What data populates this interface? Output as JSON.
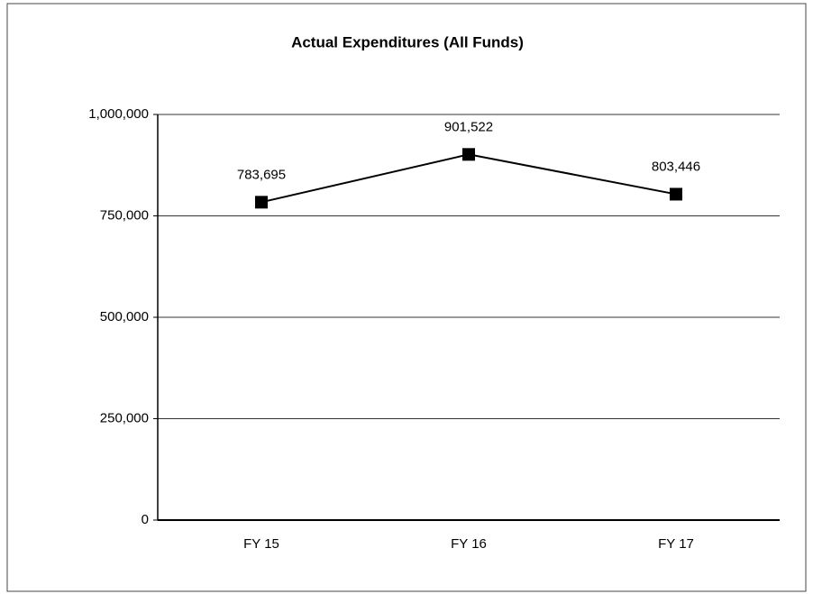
{
  "chart_data": {
    "type": "line",
    "title": "Actual Expenditures (All Funds)",
    "categories": [
      "FY 15",
      "FY 16",
      "FY 17"
    ],
    "series": [
      {
        "name": "Actual Expenditures",
        "color": "#000000",
        "values": [
          783695,
          901522,
          803446
        ],
        "value_labels": [
          "783,695",
          "901,522",
          "803,446"
        ]
      }
    ],
    "ylim": [
      0,
      1000000
    ],
    "yticks": [
      0,
      {
        "value": 250000,
        "label": "250,000"
      },
      {
        "value": 500000,
        "label": "500,000"
      },
      {
        "value": 750000,
        "label": "750,000"
      },
      {
        "value": 1000000,
        "label": "1,000,000"
      }
    ],
    "grid": true,
    "legend": false
  }
}
